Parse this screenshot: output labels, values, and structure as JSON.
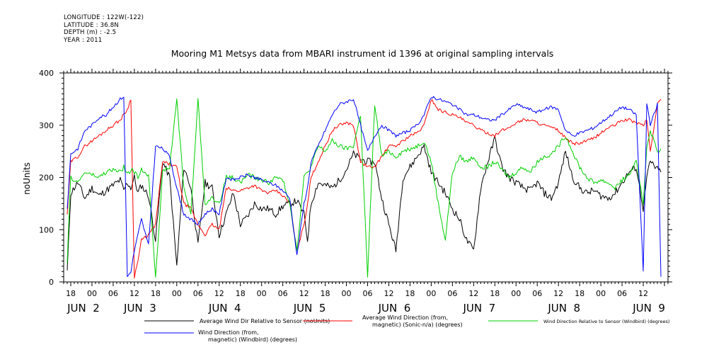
{
  "header": {
    "lines": [
      "LONGITUDE : 122W(-122)",
      "LATITUDE : 36.8N",
      "DEPTH (m) : -2.5",
      "YEAR : 2011"
    ]
  },
  "chart_data": {
    "type": "line",
    "title": "Mooring M1 Metsys data from MBARI instrument id 1396 at original sampling intervals",
    "ylabel": "noUnits",
    "xlabel": "",
    "ylim": [
      0,
      400
    ],
    "yticks": [
      0,
      100,
      200,
      300,
      400
    ],
    "xlim_hours": [
      -8,
      163
    ],
    "hour_ticks": [
      {
        "h": -6,
        "label": "18"
      },
      {
        "h": 0,
        "label": "00"
      },
      {
        "h": 6,
        "label": "06"
      },
      {
        "h": 12,
        "label": "12"
      },
      {
        "h": 18,
        "label": "18"
      },
      {
        "h": 24,
        "label": "00"
      },
      {
        "h": 30,
        "label": "06"
      },
      {
        "h": 36,
        "label": "12"
      },
      {
        "h": 42,
        "label": "18"
      },
      {
        "h": 48,
        "label": "00"
      },
      {
        "h": 54,
        "label": "06"
      },
      {
        "h": 60,
        "label": "12"
      },
      {
        "h": 66,
        "label": "18"
      },
      {
        "h": 72,
        "label": "00"
      },
      {
        "h": 78,
        "label": "06"
      },
      {
        "h": 84,
        "label": "12"
      },
      {
        "h": 90,
        "label": "18"
      },
      {
        "h": 96,
        "label": "00"
      },
      {
        "h": 102,
        "label": "06"
      },
      {
        "h": 108,
        "label": "12"
      },
      {
        "h": 114,
        "label": "18"
      },
      {
        "h": 120,
        "label": "00"
      },
      {
        "h": 126,
        "label": "06"
      },
      {
        "h": 132,
        "label": "12"
      },
      {
        "h": 138,
        "label": "18"
      },
      {
        "h": 144,
        "label": "00"
      },
      {
        "h": 150,
        "label": "06"
      },
      {
        "h": 156,
        "label": "12"
      }
    ],
    "day_labels": [
      {
        "h": -6,
        "text": "JUN  2"
      },
      {
        "h": 10,
        "text": "JUN  3"
      },
      {
        "h": 34,
        "text": "JUN  4"
      },
      {
        "h": 58,
        "text": "JUN  5"
      },
      {
        "h": 82,
        "text": "JUN  6"
      },
      {
        "h": 106,
        "text": "JUN  7"
      },
      {
        "h": 130,
        "text": "JUN  8"
      },
      {
        "h": 154,
        "text": "JUN  9"
      }
    ],
    "series": [
      {
        "name": "Average Wind Dir Relative to Sensor (noUnits)",
        "color": "#000000",
        "x": [
          -7,
          -6,
          -4,
          -2,
          0,
          2,
          4,
          6,
          8,
          9,
          10,
          11,
          12,
          13,
          14,
          16,
          18,
          20,
          22,
          24,
          26,
          28,
          30,
          32,
          34,
          36,
          38,
          40,
          42,
          44,
          46,
          48,
          50,
          52,
          54,
          56,
          58,
          60,
          61,
          62,
          64,
          66,
          68,
          70,
          72,
          74,
          76,
          78,
          80,
          82,
          84,
          86,
          88,
          90,
          92,
          94,
          96,
          98,
          100,
          102,
          104,
          106,
          108,
          110,
          112,
          114,
          116,
          118,
          120,
          122,
          124,
          126,
          128,
          130,
          132,
          134,
          136,
          138,
          140,
          142,
          144,
          146,
          148,
          150,
          152,
          154,
          156,
          157,
          158,
          160,
          161
        ],
        "y": [
          20,
          170,
          190,
          160,
          180,
          165,
          175,
          185,
          195,
          175,
          190,
          180,
          200,
          170,
          185,
          165,
          80,
          230,
          200,
          30,
          220,
          180,
          70,
          190,
          180,
          90,
          130,
          170,
          110,
          125,
          150,
          140,
          140,
          130,
          145,
          150,
          155,
          130,
          80,
          150,
          190,
          185,
          180,
          195,
          215,
          245,
          235,
          230,
          230,
          160,
          110,
          60,
          200,
          220,
          240,
          260,
          210,
          190,
          170,
          140,
          120,
          80,
          60,
          180,
          230,
          275,
          220,
          200,
          190,
          180,
          175,
          190,
          170,
          160,
          190,
          250,
          200,
          180,
          170,
          175,
          165,
          160,
          170,
          190,
          210,
          220,
          140,
          200,
          230,
          215,
          210
        ]
      },
      {
        "name": "Average Wind Direction (from, magnetic) (Sonic-n/a) (degrees)",
        "color": "#ff0000",
        "x": [
          -7,
          -6,
          -4,
          -2,
          0,
          2,
          4,
          6,
          8,
          9,
          10,
          11,
          12,
          13,
          14,
          16,
          18,
          20,
          22,
          24,
          26,
          28,
          30,
          32,
          34,
          36,
          38,
          40,
          42,
          44,
          46,
          48,
          50,
          52,
          54,
          56,
          58,
          60,
          61,
          62,
          64,
          66,
          68,
          70,
          72,
          74,
          76,
          78,
          80,
          82,
          84,
          86,
          88,
          90,
          92,
          94,
          96,
          98,
          100,
          102,
          104,
          106,
          108,
          110,
          112,
          114,
          116,
          118,
          120,
          122,
          124,
          126,
          128,
          130,
          132,
          134,
          136,
          138,
          140,
          142,
          144,
          146,
          148,
          150,
          152,
          154,
          156,
          157,
          158,
          160,
          161
        ],
        "y": [
          130,
          230,
          240,
          260,
          270,
          280,
          290,
          300,
          310,
          320,
          330,
          350,
          10,
          40,
          80,
          90,
          110,
          230,
          225,
          220,
          150,
          140,
          110,
          90,
          110,
          100,
          180,
          175,
          175,
          180,
          185,
          175,
          170,
          175,
          165,
          150,
          60,
          110,
          150,
          200,
          230,
          260,
          290,
          300,
          305,
          300,
          230,
          220,
          220,
          240,
          260,
          260,
          270,
          280,
          285,
          300,
          350,
          330,
          325,
          320,
          315,
          305,
          300,
          290,
          285,
          280,
          290,
          295,
          305,
          310,
          310,
          305,
          300,
          295,
          290,
          275,
          265,
          265,
          270,
          275,
          285,
          295,
          300,
          310,
          310,
          305,
          300,
          310,
          250,
          340,
          350
        ]
      },
      {
        "name": "Wind Direction Relative to Sensor (Windbird) (degrees)",
        "color": "#00d000",
        "x": [
          -7,
          -6,
          -4,
          -2,
          0,
          2,
          4,
          6,
          8,
          9,
          10,
          11,
          12,
          13,
          14,
          16,
          18,
          20,
          22,
          24,
          26,
          28,
          30,
          32,
          34,
          36,
          38,
          40,
          42,
          44,
          46,
          48,
          50,
          52,
          54,
          56,
          58,
          60,
          61,
          62,
          64,
          66,
          68,
          70,
          72,
          74,
          76,
          78,
          80,
          82,
          84,
          86,
          88,
          90,
          92,
          94,
          96,
          98,
          100,
          102,
          104,
          106,
          108,
          110,
          112,
          114,
          116,
          118,
          120,
          122,
          124,
          126,
          128,
          130,
          132,
          134,
          136,
          138,
          140,
          142,
          144,
          146,
          148,
          150,
          152,
          154,
          156,
          157,
          158,
          160,
          161
        ],
        "y": [
          40,
          200,
          190,
          210,
          205,
          200,
          210,
          215,
          210,
          220,
          205,
          215,
          210,
          200,
          215,
          205,
          10,
          210,
          220,
          350,
          180,
          130,
          350,
          150,
          160,
          150,
          200,
          200,
          190,
          205,
          200,
          195,
          190,
          200,
          195,
          150,
          60,
          200,
          210,
          220,
          260,
          250,
          270,
          260,
          255,
          260,
          320,
          10,
          340,
          240,
          250,
          240,
          250,
          255,
          260,
          270,
          230,
          150,
          80,
          210,
          240,
          230,
          240,
          220,
          220,
          230,
          215,
          200,
          210,
          220,
          210,
          230,
          240,
          245,
          260,
          280,
          250,
          220,
          200,
          190,
          195,
          190,
          180,
          195,
          205,
          230,
          150,
          260,
          290,
          250,
          255
        ]
      },
      {
        "name": "Wind Direction (from, magnetic) (Windbird) (degrees)",
        "color": "#0000ff",
        "x": [
          -7,
          -6,
          -4,
          -2,
          0,
          2,
          4,
          6,
          8,
          9,
          10,
          11,
          12,
          13,
          14,
          16,
          18,
          20,
          22,
          24,
          26,
          28,
          30,
          32,
          34,
          36,
          38,
          40,
          42,
          44,
          46,
          48,
          50,
          52,
          54,
          56,
          58,
          60,
          61,
          62,
          64,
          66,
          68,
          70,
          72,
          74,
          76,
          78,
          80,
          82,
          84,
          86,
          88,
          90,
          92,
          94,
          96,
          98,
          100,
          102,
          104,
          106,
          108,
          110,
          112,
          114,
          116,
          118,
          120,
          122,
          124,
          126,
          128,
          130,
          132,
          134,
          136,
          138,
          140,
          142,
          144,
          146,
          148,
          150,
          152,
          154,
          156,
          157,
          158,
          160,
          161
        ],
        "y": [
          140,
          245,
          255,
          290,
          300,
          315,
          320,
          335,
          350,
          355,
          10,
          20,
          60,
          90,
          120,
          70,
          260,
          255,
          240,
          180,
          130,
          120,
          110,
          130,
          140,
          130,
          200,
          195,
          200,
          205,
          200,
          195,
          190,
          185,
          175,
          160,
          50,
          150,
          180,
          230,
          260,
          290,
          320,
          340,
          345,
          350,
          300,
          250,
          280,
          300,
          290,
          280,
          285,
          290,
          300,
          320,
          355,
          350,
          345,
          340,
          330,
          320,
          320,
          315,
          310,
          310,
          320,
          330,
          340,
          335,
          330,
          325,
          330,
          335,
          330,
          290,
          280,
          285,
          290,
          295,
          305,
          315,
          325,
          335,
          330,
          320,
          20,
          340,
          300,
          340,
          10
        ]
      }
    ],
    "legend": {
      "placement": "bottom",
      "entries": [
        {
          "text": "Average Wind Dir Relative to Sensor (noUnits)",
          "color": "#000000"
        },
        {
          "text": "Average Wind Direction (from,\nmagnetic) (Sonic-n/a) (degrees)",
          "color": "#ff0000"
        },
        {
          "text": "Wind Direction Relative to Sensor (Windbird) (degrees)",
          "color": "#00d000"
        },
        {
          "text": "Wind Direction (from,\nmagnetic) (Windbird) (degrees)",
          "color": "#0000ff"
        }
      ]
    }
  }
}
